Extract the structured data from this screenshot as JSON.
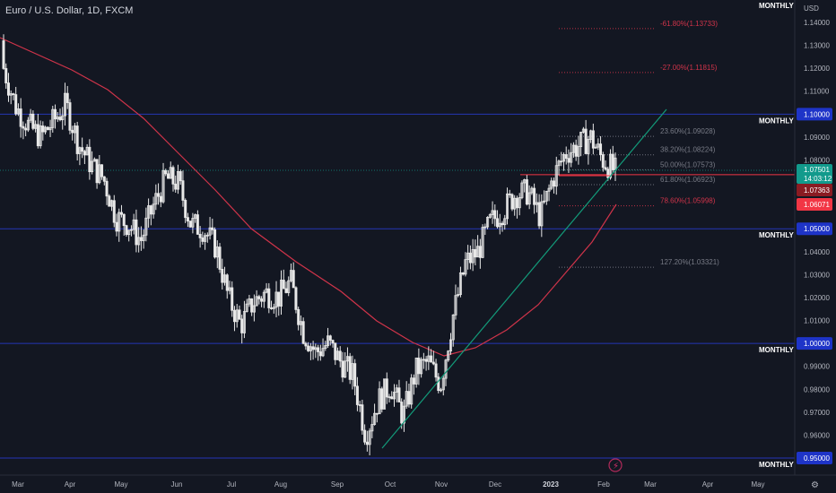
{
  "header": {
    "title": "Euro / U.S. Dollar, 1D, FXCM"
  },
  "axis_currency": "USD",
  "monthly_label": "MONTHLY",
  "colors": {
    "background": "#131722",
    "candle": "#e8e8e8",
    "ma": "#d0344a",
    "trendline": "#139b7a",
    "level": "#2436b5",
    "fib_neutral": "#787b86",
    "fib_red": "#d0344a",
    "current": "#129a8c",
    "tag_red": "#f23645",
    "tag_dark_red": "#8a1b22",
    "tag_blue": "#1e34c8"
  },
  "price_tags": {
    "current": {
      "value": "1.07501",
      "countdown": "14:03:12"
    },
    "level_a": "1.07363",
    "level_b": "1.06071"
  },
  "chart_data": {
    "type": "candlestick",
    "title": "Euro / U.S. Dollar, 1D, FXCM",
    "y_ticks": [
      "1.14000",
      "1.13000",
      "1.12000",
      "1.11000",
      "1.10000",
      "1.09000",
      "1.08000",
      "1.07000",
      "1.06000",
      "1.05000",
      "1.04000",
      "1.03000",
      "1.02000",
      "1.01000",
      "1.00000",
      "0.99000",
      "0.98000",
      "0.97000",
      "0.96000",
      "0.95000"
    ],
    "ylim": [
      0.945,
      1.145
    ],
    "x_ticks": [
      "Mar",
      "Apr",
      "May",
      "Jun",
      "Jul",
      "Aug",
      "Sep",
      "Oct",
      "Nov",
      "Dec",
      "2023",
      "Feb",
      "Mar",
      "Apr",
      "May"
    ],
    "close_path": [
      [
        "Mar",
        1.12
      ],
      [
        "Mar",
        1.103
      ],
      [
        "Mar",
        1.095
      ],
      [
        "Mar",
        1.09
      ],
      [
        "Apr",
        1.097
      ],
      [
        "Apr",
        1.104
      ],
      [
        "Apr",
        1.087
      ],
      [
        "Apr",
        1.078
      ],
      [
        "Apr",
        1.072
      ],
      [
        "May",
        1.055
      ],
      [
        "May",
        1.052
      ],
      [
        "May",
        1.045
      ],
      [
        "May",
        1.06
      ],
      [
        "Jun",
        1.072
      ],
      [
        "Jun",
        1.07
      ],
      [
        "Jun",
        1.052
      ],
      [
        "Jun",
        1.05
      ],
      [
        "Jul",
        1.042
      ],
      [
        "Jul",
        1.02
      ],
      [
        "Jul",
        1.008
      ],
      [
        "Jul",
        1.018
      ],
      [
        "Aug",
        1.022
      ],
      [
        "Aug",
        1.02
      ],
      [
        "Aug",
        1.027
      ],
      [
        "Aug",
        1.005
      ],
      [
        "Sep",
        0.996
      ],
      [
        "Sep",
        1.0
      ],
      [
        "Sep",
        0.992
      ],
      [
        "Sep",
        0.986
      ],
      [
        "Sep",
        0.96
      ],
      [
        "Oct",
        0.975
      ],
      [
        "Oct",
        0.982
      ],
      [
        "Oct",
        0.968
      ],
      [
        "Oct",
        0.988
      ],
      [
        "Nov",
        0.992
      ],
      [
        "Nov",
        0.982
      ],
      [
        "Nov",
        1.012
      ],
      [
        "Nov",
        1.035
      ],
      [
        "Nov",
        1.04
      ],
      [
        "Dec",
        1.053
      ],
      [
        "Dec",
        1.058
      ],
      [
        "Dec",
        1.065
      ],
      [
        "Dec",
        1.066
      ],
      [
        "2023",
        1.055
      ],
      [
        "2023",
        1.072
      ],
      [
        "2023",
        1.083
      ],
      [
        "2023",
        1.086
      ],
      [
        "Feb",
        1.09
      ],
      [
        "Feb",
        1.08
      ],
      [
        "Feb",
        1.075
      ]
    ],
    "moving_average": [
      [
        "Mar",
        1.128
      ],
      [
        "Apr",
        1.118
      ],
      [
        "May",
        1.1
      ],
      [
        "Jun",
        1.078
      ],
      [
        "Jul",
        1.063
      ],
      [
        "Aug",
        1.045
      ],
      [
        "Sep",
        1.025
      ],
      [
        "Oct",
        1.002
      ],
      [
        "Nov",
        0.992
      ],
      [
        "Dec",
        0.998
      ],
      [
        "2023",
        1.015
      ],
      [
        "Feb",
        1.055
      ]
    ],
    "horizontal_levels": [
      {
        "price": 1.1,
        "label": "MONTHLY",
        "tag": "1.10000"
      },
      {
        "price": 1.05,
        "label": "MONTHLY",
        "tag": "1.05000"
      },
      {
        "price": 1.0,
        "label": "MONTHLY",
        "tag": "1.00000"
      },
      {
        "price": 0.95,
        "label": "MONTHLY",
        "tag": "0.95000"
      }
    ],
    "top_label": "MONTHLY",
    "fibonacci": [
      {
        "label": "-61.80%(1.13733)",
        "price": 1.13733,
        "style": "red"
      },
      {
        "label": "-27.00%(1.11815)",
        "price": 1.11815,
        "style": "red"
      },
      {
        "label": "23.60%(1.09028)",
        "price": 1.09028,
        "style": "neutral"
      },
      {
        "label": "38.20%(1.08224)",
        "price": 1.08224,
        "style": "neutral"
      },
      {
        "label": "50.00%(1.07573)",
        "price": 1.07573,
        "style": "neutral"
      },
      {
        "label": "61.80%(1.06923)",
        "price": 1.06923,
        "style": "neutral"
      },
      {
        "label": "78.60%(1.05998)",
        "price": 1.05998,
        "style": "red"
      },
      {
        "label": "127.20%(1.03321)",
        "price": 1.03321,
        "style": "neutral"
      }
    ]
  }
}
